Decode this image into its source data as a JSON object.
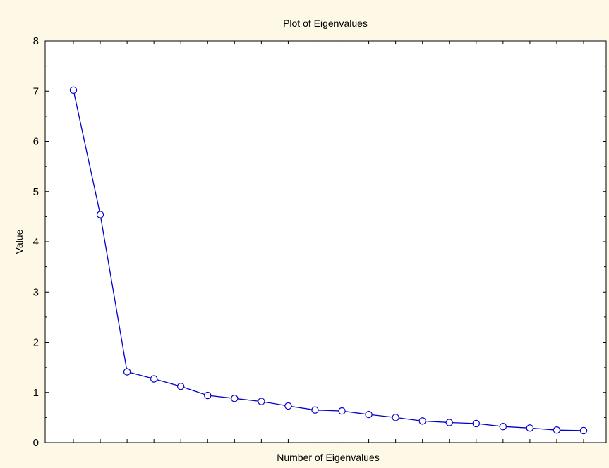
{
  "chart_data": {
    "type": "line",
    "title": "Plot of Eigenvalues",
    "xlabel": "Number of Eigenvalues",
    "ylabel": "Value",
    "ylim": [
      0,
      8
    ],
    "yticks": [
      0,
      1,
      2,
      3,
      4,
      5,
      6,
      7,
      8
    ],
    "x": [
      1,
      2,
      3,
      4,
      5,
      6,
      7,
      8,
      9,
      10,
      11,
      12,
      13,
      14,
      15,
      16,
      17,
      18,
      19,
      20
    ],
    "series": [
      {
        "values": [
          7.02,
          4.54,
          1.41,
          1.27,
          1.12,
          0.94,
          0.88,
          0.82,
          0.73,
          0.65,
          0.63,
          0.56,
          0.5,
          0.43,
          0.4,
          0.38,
          0.32,
          0.29,
          0.25,
          0.24
        ]
      }
    ],
    "grid": false,
    "colors": {
      "background": "#fdf9e6",
      "plot_area": "#ffffff",
      "line": "#0000cc",
      "marker_fill": "#ffffff"
    }
  }
}
